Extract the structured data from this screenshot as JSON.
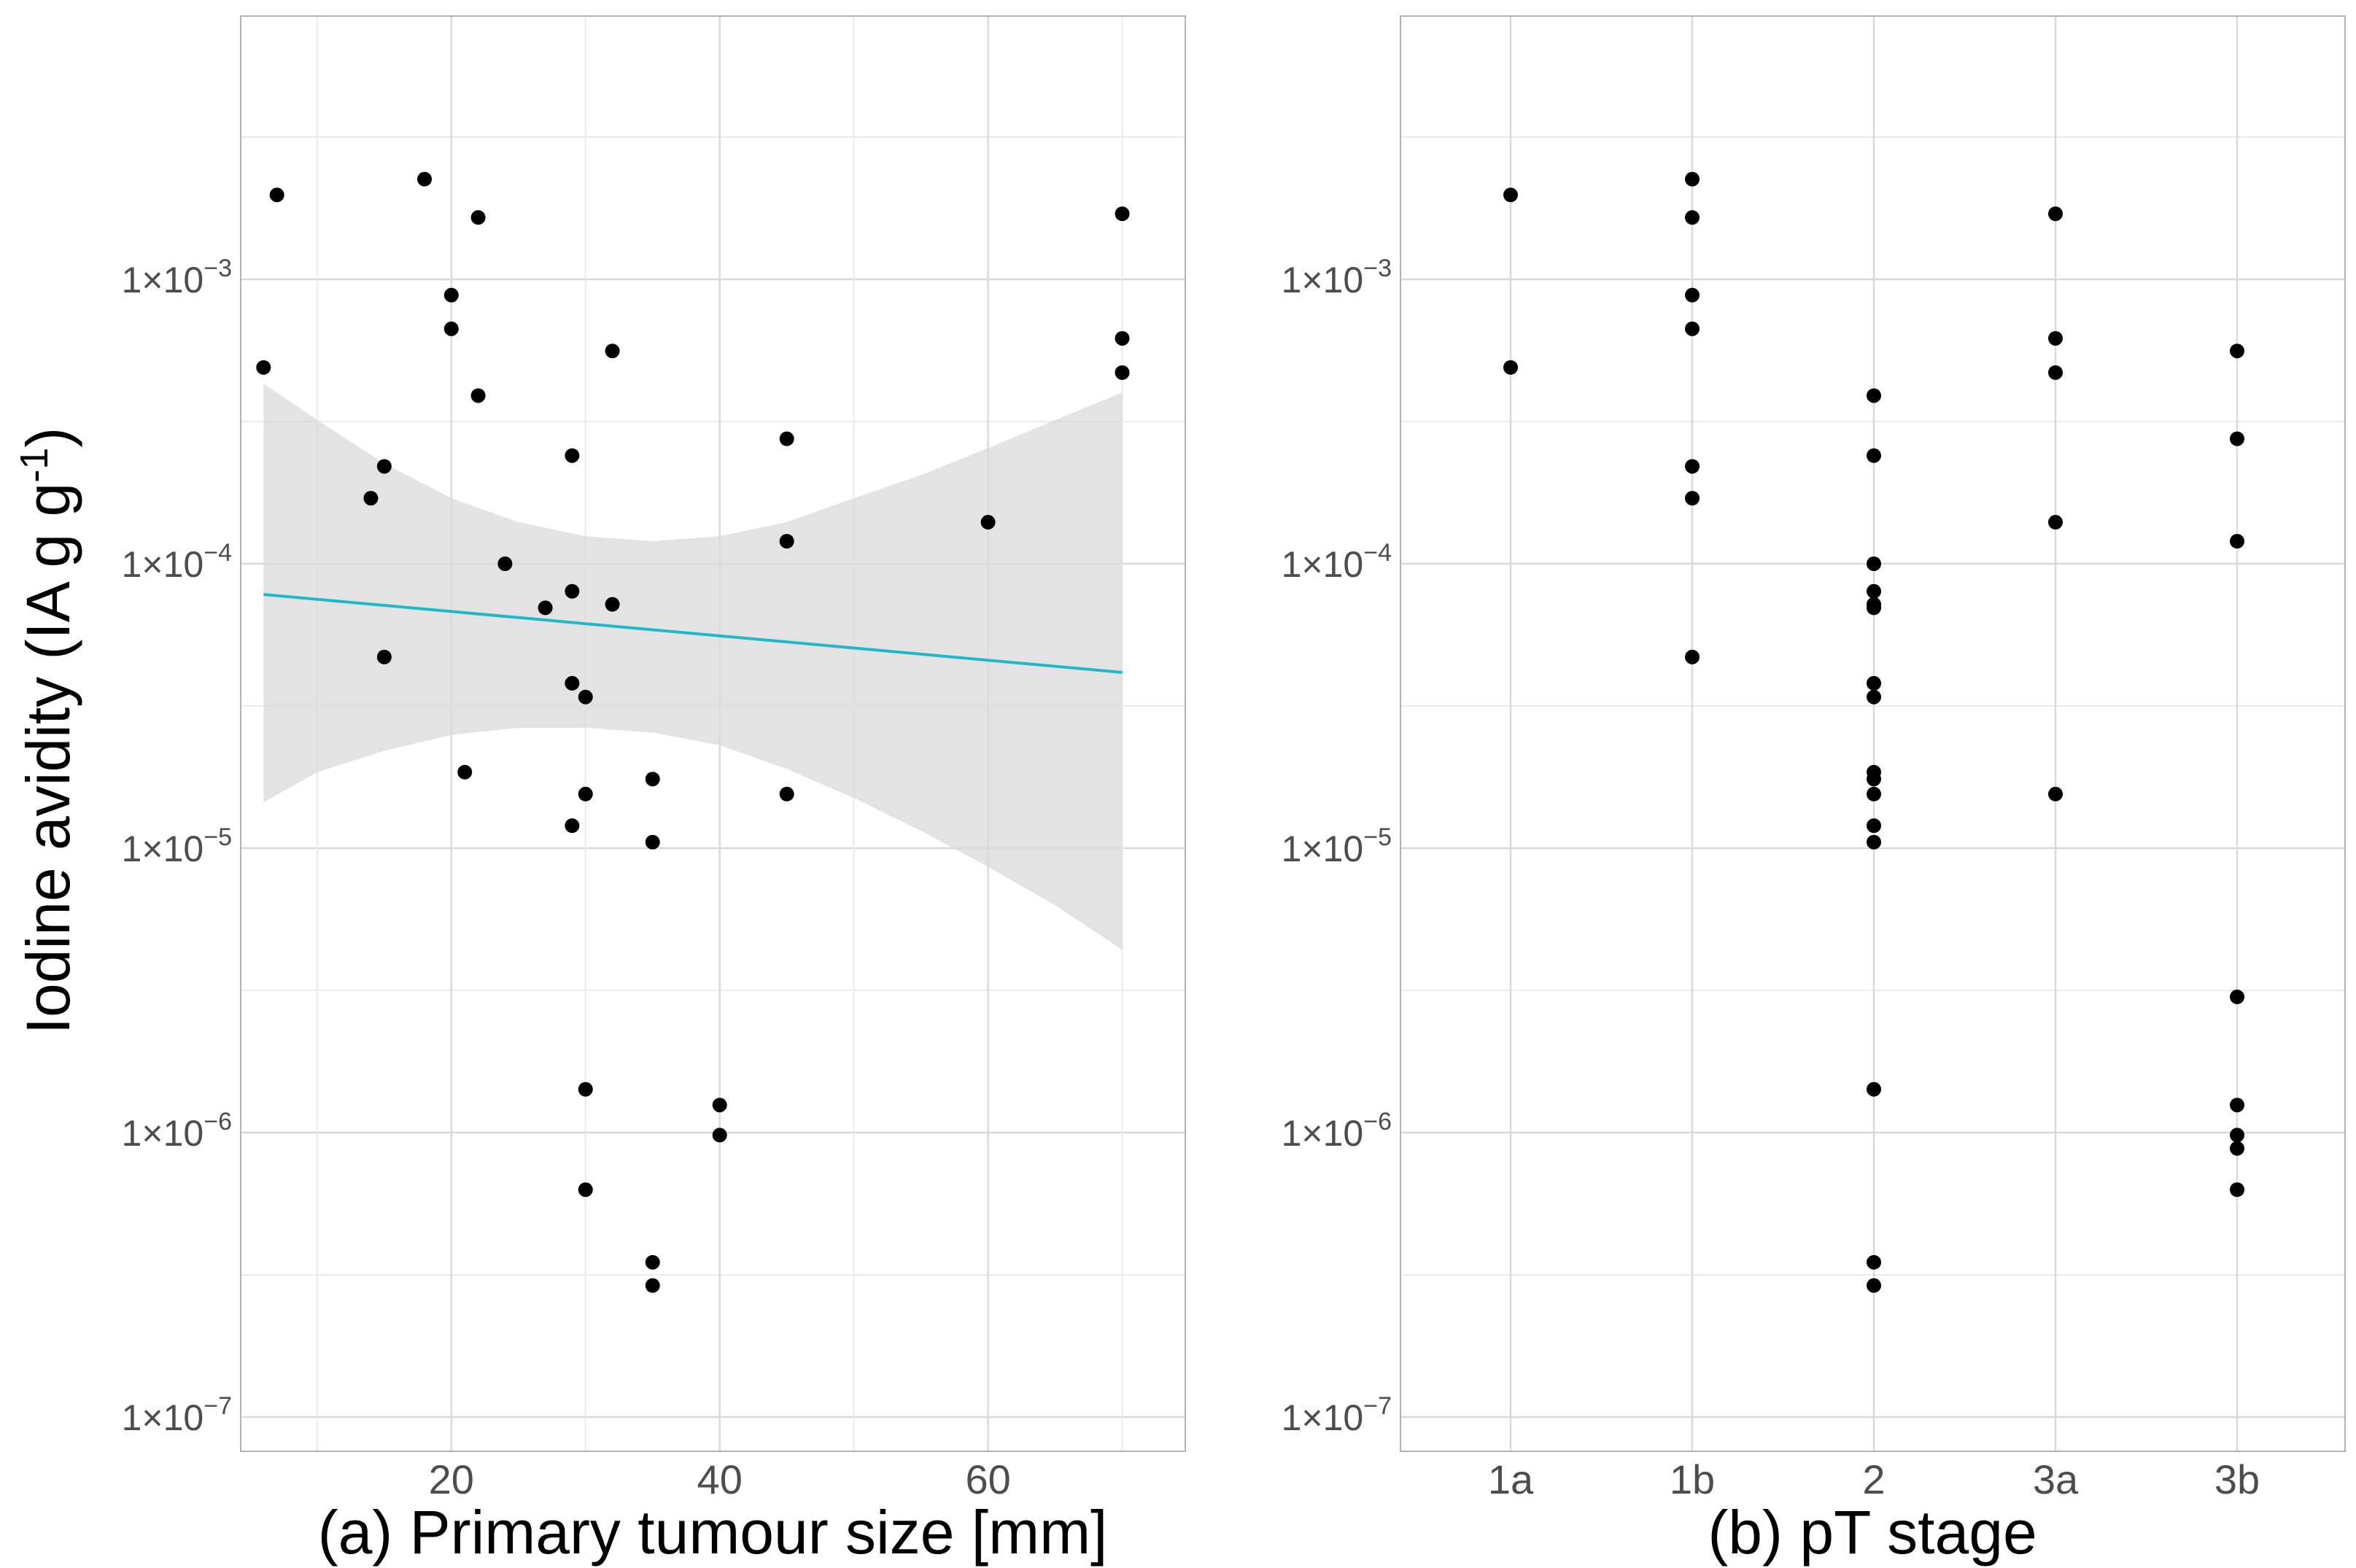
{
  "colors": {
    "panel_background": "#ffffff",
    "panel_border": "#b3b3b3",
    "grid_major": "#d9d9d9",
    "grid_minor": "#ebebeb",
    "point": "#000000",
    "fit_line": "#20b8c8",
    "confidence_band": "#d9d9d9",
    "tick_label": "#4d4d4d",
    "title": "#000000"
  },
  "chart_data": [
    {
      "type": "scatter",
      "panel": "a",
      "xlabel": "(a) Primary tumour size [mm]",
      "ylabel": "Iodine avidity",
      "ylabel_units": "(IA g",
      "ylabel_exponent": "-1",
      "ylabel_close": ")",
      "yscale": "log10",
      "ylim": [
        5e-08,
        0.01
      ],
      "xlim": [
        4.3,
        74.7
      ],
      "xticks": [
        20,
        40,
        60
      ],
      "xtick_labels": [
        "20",
        "40",
        "60"
      ],
      "yticks": [
        1e-07,
        1e-06,
        1e-05,
        0.0001,
        0.001
      ],
      "ytick_labels": [
        {
          "base": "1×10",
          "exp": "−7"
        },
        {
          "base": "1×10",
          "exp": "−6"
        },
        {
          "base": "1×10",
          "exp": "−5"
        },
        {
          "base": "1×10",
          "exp": "−4"
        },
        {
          "base": "1×10",
          "exp": "−3"
        }
      ],
      "points": [
        {
          "x": 6,
          "y": 0.00049
        },
        {
          "x": 7,
          "y": 0.00198
        },
        {
          "x": 14,
          "y": 0.00017
        },
        {
          "x": 15,
          "y": 0.00022
        },
        {
          "x": 15,
          "y": 4.7e-05
        },
        {
          "x": 18,
          "y": 0.00225
        },
        {
          "x": 20,
          "y": 0.00088
        },
        {
          "x": 20,
          "y": 0.00067
        },
        {
          "x": 21,
          "y": 1.85e-05
        },
        {
          "x": 22,
          "y": 0.00165
        },
        {
          "x": 22,
          "y": 0.00039
        },
        {
          "x": 24,
          "y": 0.0001
        },
        {
          "x": 27,
          "y": 7e-05
        },
        {
          "x": 29,
          "y": 0.00024
        },
        {
          "x": 29,
          "y": 8e-05
        },
        {
          "x": 29,
          "y": 3.8e-05
        },
        {
          "x": 29,
          "y": 1.2e-05
        },
        {
          "x": 30,
          "y": 3.4e-05
        },
        {
          "x": 30,
          "y": 1.55e-05
        },
        {
          "x": 30,
          "y": 1.42e-06
        },
        {
          "x": 30,
          "y": 6.3e-07
        },
        {
          "x": 32,
          "y": 0.00056
        },
        {
          "x": 32,
          "y": 7.2e-05
        },
        {
          "x": 35,
          "y": 1.75e-05
        },
        {
          "x": 35,
          "y": 1.05e-05
        },
        {
          "x": 35,
          "y": 3.5e-07
        },
        {
          "x": 35,
          "y": 2.9e-07
        },
        {
          "x": 40,
          "y": 1.25e-06
        },
        {
          "x": 40,
          "y": 9.8e-07
        },
        {
          "x": 45,
          "y": 0.000275
        },
        {
          "x": 45,
          "y": 0.00012
        },
        {
          "x": 45,
          "y": 1.55e-05
        },
        {
          "x": 60,
          "y": 0.00014
        },
        {
          "x": 70,
          "y": 0.0017
        },
        {
          "x": 70,
          "y": 0.00062
        },
        {
          "x": 70,
          "y": 0.00047
        }
      ],
      "fit_line": {
        "x": [
          6,
          70
        ],
        "y": [
          7.8e-05,
          4.15e-05
        ]
      },
      "confidence_band": {
        "x": [
          6,
          10,
          15,
          20,
          25,
          30,
          35,
          40,
          45,
          50,
          55,
          60,
          65,
          70
        ],
        "upper": [
          0.00043,
          0.00032,
          0.000225,
          0.00017,
          0.00014,
          0.000125,
          0.00012,
          0.000125,
          0.00014,
          0.00017,
          0.000205,
          0.000255,
          0.00032,
          0.0004
        ],
        "lower": [
          1.45e-05,
          1.85e-05,
          2.2e-05,
          2.5e-05,
          2.65e-05,
          2.65e-05,
          2.55e-05,
          2.3e-05,
          1.9e-05,
          1.5e-05,
          1.15e-05,
          8.6e-06,
          6.3e-06,
          4.4e-06
        ]
      }
    },
    {
      "type": "scatter",
      "panel": "b",
      "xlabel": "(b) pT stage",
      "yscale": "log10",
      "ylim": [
        5e-08,
        0.01
      ],
      "categories": [
        "1a",
        "1b",
        "2",
        "3a",
        "3b"
      ],
      "yticks": [
        1e-07,
        1e-06,
        1e-05,
        0.0001,
        0.001
      ],
      "ytick_labels": [
        {
          "base": "1×10",
          "exp": "−7"
        },
        {
          "base": "1×10",
          "exp": "−6"
        },
        {
          "base": "1×10",
          "exp": "−5"
        },
        {
          "base": "1×10",
          "exp": "−4"
        },
        {
          "base": "1×10",
          "exp": "−3"
        }
      ],
      "points": [
        {
          "category": "1a",
          "y": 0.00198
        },
        {
          "category": "1a",
          "y": 0.00049
        },
        {
          "category": "1b",
          "y": 0.00225
        },
        {
          "category": "1b",
          "y": 0.00165
        },
        {
          "category": "1b",
          "y": 0.00088
        },
        {
          "category": "1b",
          "y": 0.00067
        },
        {
          "category": "1b",
          "y": 0.00022
        },
        {
          "category": "1b",
          "y": 0.00017
        },
        {
          "category": "1b",
          "y": 4.7e-05
        },
        {
          "category": "2",
          "y": 0.00039
        },
        {
          "category": "2",
          "y": 0.00024
        },
        {
          "category": "2",
          "y": 0.0001
        },
        {
          "category": "2",
          "y": 8e-05
        },
        {
          "category": "2",
          "y": 7.2e-05
        },
        {
          "category": "2",
          "y": 7e-05
        },
        {
          "category": "2",
          "y": 3.8e-05
        },
        {
          "category": "2",
          "y": 3.4e-05
        },
        {
          "category": "2",
          "y": 1.85e-05
        },
        {
          "category": "2",
          "y": 1.75e-05
        },
        {
          "category": "2",
          "y": 1.55e-05
        },
        {
          "category": "2",
          "y": 1.2e-05
        },
        {
          "category": "2",
          "y": 1.05e-05
        },
        {
          "category": "2",
          "y": 1.42e-06
        },
        {
          "category": "2",
          "y": 3.5e-07
        },
        {
          "category": "2",
          "y": 2.9e-07
        },
        {
          "category": "3a",
          "y": 0.0017
        },
        {
          "category": "3a",
          "y": 0.00062
        },
        {
          "category": "3a",
          "y": 0.00047
        },
        {
          "category": "3a",
          "y": 0.00014
        },
        {
          "category": "3a",
          "y": 1.55e-05
        },
        {
          "category": "3b",
          "y": 0.00056
        },
        {
          "category": "3b",
          "y": 0.000275
        },
        {
          "category": "3b",
          "y": 0.00012
        },
        {
          "category": "3b",
          "y": 3e-06
        },
        {
          "category": "3b",
          "y": 1.25e-06
        },
        {
          "category": "3b",
          "y": 9.8e-07
        },
        {
          "category": "3b",
          "y": 8.8e-07
        },
        {
          "category": "3b",
          "y": 6.3e-07
        }
      ]
    }
  ]
}
